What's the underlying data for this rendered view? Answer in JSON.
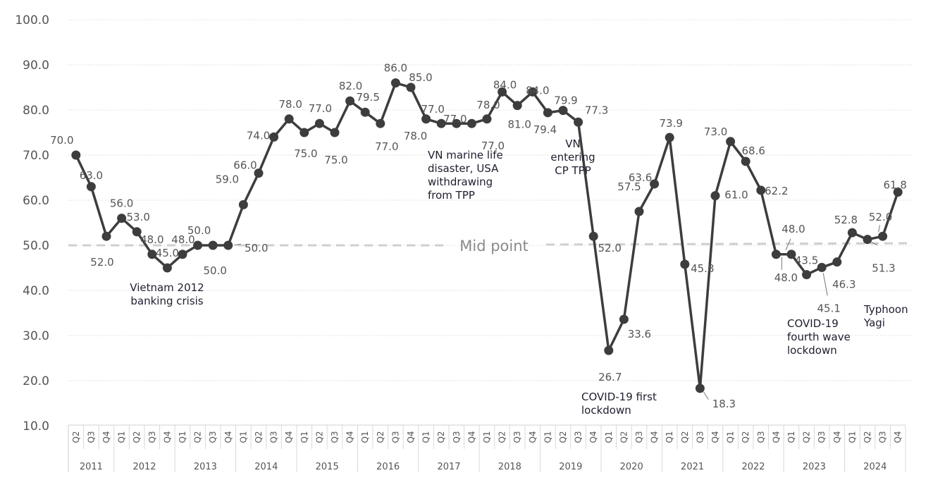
{
  "chart_data": {
    "type": "line",
    "title": "",
    "xlabel": "",
    "ylabel": "",
    "ylim": [
      10,
      100
    ],
    "yticks": [
      "10.0",
      "20.0",
      "30.0",
      "40.0",
      "50.0",
      "60.0",
      "70.0",
      "80.0",
      "90.0",
      "100.0"
    ],
    "grid": true,
    "years": [
      {
        "year": "2011",
        "quarters": [
          "Q2",
          "Q3",
          "Q4"
        ]
      },
      {
        "year": "2012",
        "quarters": [
          "Q1",
          "Q2",
          "Q3",
          "Q4"
        ]
      },
      {
        "year": "2013",
        "quarters": [
          "Q1",
          "Q2",
          "Q3",
          "Q4"
        ]
      },
      {
        "year": "2014",
        "quarters": [
          "Q1",
          "Q2",
          "Q3",
          "Q4"
        ]
      },
      {
        "year": "2015",
        "quarters": [
          "Q1",
          "Q2",
          "Q3",
          "Q4"
        ]
      },
      {
        "year": "2016",
        "quarters": [
          "Q1",
          "Q2",
          "Q3",
          "Q4"
        ]
      },
      {
        "year": "2017",
        "quarters": [
          "Q1",
          "Q2",
          "Q3",
          "Q4"
        ]
      },
      {
        "year": "2018",
        "quarters": [
          "Q1",
          "Q2",
          "Q3",
          "Q4"
        ]
      },
      {
        "year": "2019",
        "quarters": [
          "Q1",
          "Q2",
          "Q3",
          "Q4"
        ]
      },
      {
        "year": "2020",
        "quarters": [
          "Q1",
          "Q2",
          "Q3",
          "Q4"
        ]
      },
      {
        "year": "2021",
        "quarters": [
          "Q1",
          "Q2",
          "Q3",
          "Q4"
        ]
      },
      {
        "year": "2022",
        "quarters": [
          "Q1",
          "Q2",
          "Q3",
          "Q4"
        ]
      },
      {
        "year": "2023",
        "quarters": [
          "Q1",
          "Q2",
          "Q3",
          "Q4"
        ]
      },
      {
        "year": "2024",
        "quarters": [
          "Q1",
          "Q2",
          "Q3",
          "Q4"
        ]
      }
    ],
    "values": [
      70.0,
      63.0,
      52.0,
      56.0,
      53.0,
      48.0,
      45.0,
      48.0,
      50.0,
      50.0,
      50.0,
      59.0,
      66.0,
      74.0,
      78.0,
      75.0,
      77.0,
      75.0,
      82.0,
      79.5,
      77.0,
      86.0,
      85.0,
      78.0,
      77.0,
      77.0,
      77.0,
      78.0,
      84.0,
      81.0,
      84.0,
      79.4,
      79.9,
      77.3,
      52.0,
      26.7,
      33.6,
      57.5,
      63.6,
      73.9,
      45.8,
      18.3,
      61.0,
      73.0,
      68.6,
      62.2,
      48.0,
      48.0,
      43.5,
      45.1,
      46.3,
      52.8,
      51.3,
      52.0,
      61.8
    ],
    "reference_line": {
      "value": 50,
      "label": "Mid point"
    },
    "annotations": [
      {
        "text": [
          "Vietnam 2012",
          "banking crisis"
        ]
      },
      {
        "text": [
          "VN marine life",
          "disaster, USA",
          "withdrawing",
          "from TPP"
        ]
      },
      {
        "text": [
          "VN",
          "entering",
          "CP TPP"
        ]
      },
      {
        "text": [
          "COVID-19 first",
          "lockdown"
        ]
      },
      {
        "text": [
          "COVID-19",
          "fourth wave",
          "lockdown"
        ]
      },
      {
        "text": [
          "Typhoon",
          "Yagi"
        ]
      }
    ],
    "colors": {
      "line": "#3d3d3d",
      "label": "#555555",
      "annotation": "#1f1d2e",
      "grid": "#d6d6d6",
      "midline": "#cfcfcf",
      "midtext": "#8a8a8a"
    }
  }
}
